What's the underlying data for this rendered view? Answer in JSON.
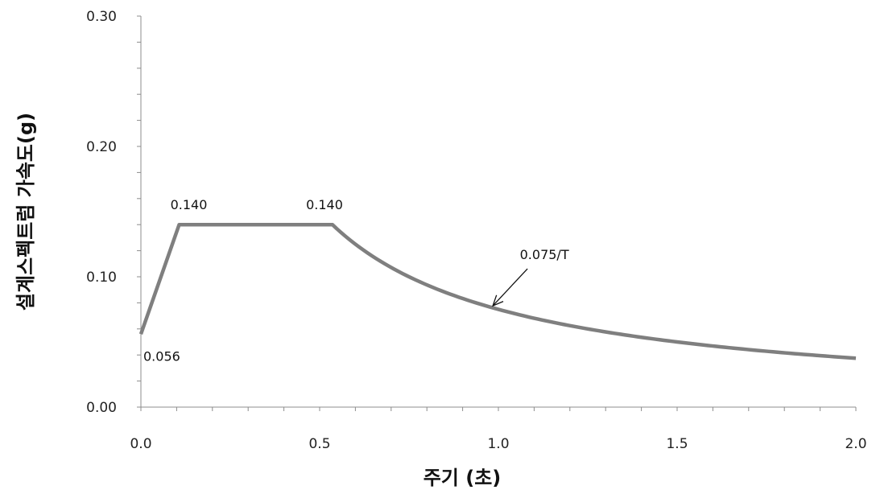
{
  "chart_data": {
    "type": "line",
    "title": "",
    "xlabel": "주기 (초)",
    "ylabel": "설계스펙트럼 가속도(g)",
    "xlim": [
      0.0,
      2.0
    ],
    "ylim": [
      0.0,
      0.3
    ],
    "x_ticks": [
      "0.0",
      "0.5",
      "1.0",
      "1.5",
      "2.0"
    ],
    "x_tick_values": [
      0.0,
      0.5,
      1.0,
      1.5,
      2.0
    ],
    "y_ticks": [
      "0.00",
      "0.10",
      "0.20",
      "0.30"
    ],
    "y_tick_values": [
      0.0,
      0.1,
      0.2,
      0.3
    ],
    "x_minor_step": 0.1,
    "y_minor_step": 0.02,
    "grid": false,
    "legend": "none",
    "series": [
      {
        "color": "#7f7f7f",
        "points": [
          {
            "x": 0.0,
            "y": 0.056
          },
          {
            "x": 0.107,
            "y": 0.14
          },
          {
            "x": 0.536,
            "y": 0.14
          }
        ],
        "descending_branch": {
          "formula": "0.075/T",
          "coefficient": 0.075,
          "from_x": 0.536,
          "to_x": 2.0
        }
      }
    ],
    "annotations": [
      {
        "text": "0.056",
        "x": 0.0,
        "y": 0.056
      },
      {
        "text": "0.140",
        "x": 0.107,
        "y": 0.14
      },
      {
        "text": "0.140",
        "x": 0.536,
        "y": 0.14
      },
      {
        "text": "0.075/T",
        "x": 0.98,
        "y": 0.0765,
        "arrow": true
      }
    ]
  }
}
